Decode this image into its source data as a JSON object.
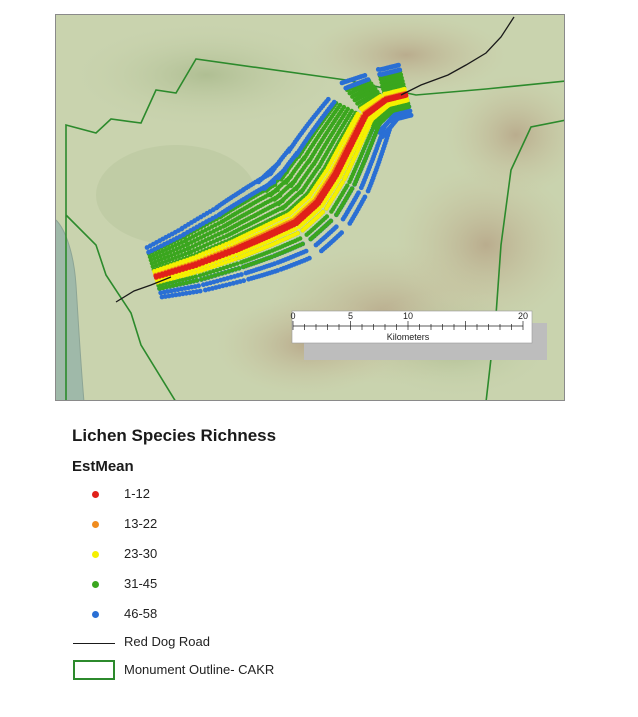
{
  "legend": {
    "title": "Lichen Species Richness",
    "field_name": "EstMean",
    "classes": [
      {
        "label": "1-12",
        "color": "#e0201a"
      },
      {
        "label": "13-22",
        "color": "#f08c1e"
      },
      {
        "label": "23-30",
        "color": "#f5f000"
      },
      {
        "label": "31-45",
        "color": "#3aa61e"
      },
      {
        "label": "46-58",
        "color": "#2a6fd4"
      }
    ],
    "road_label": "Red Dog Road",
    "outline_label": "Monument Outline- CAKR",
    "road_color": "#1a1a1a",
    "outline_color": "#2c8a2c"
  },
  "scale_bar": {
    "ticks": [
      "0",
      "5",
      "10",
      "20"
    ],
    "unit": "Kilometers"
  },
  "map": {
    "land_color": "#c9d3ae",
    "water_color": "#9fb9a9"
  }
}
